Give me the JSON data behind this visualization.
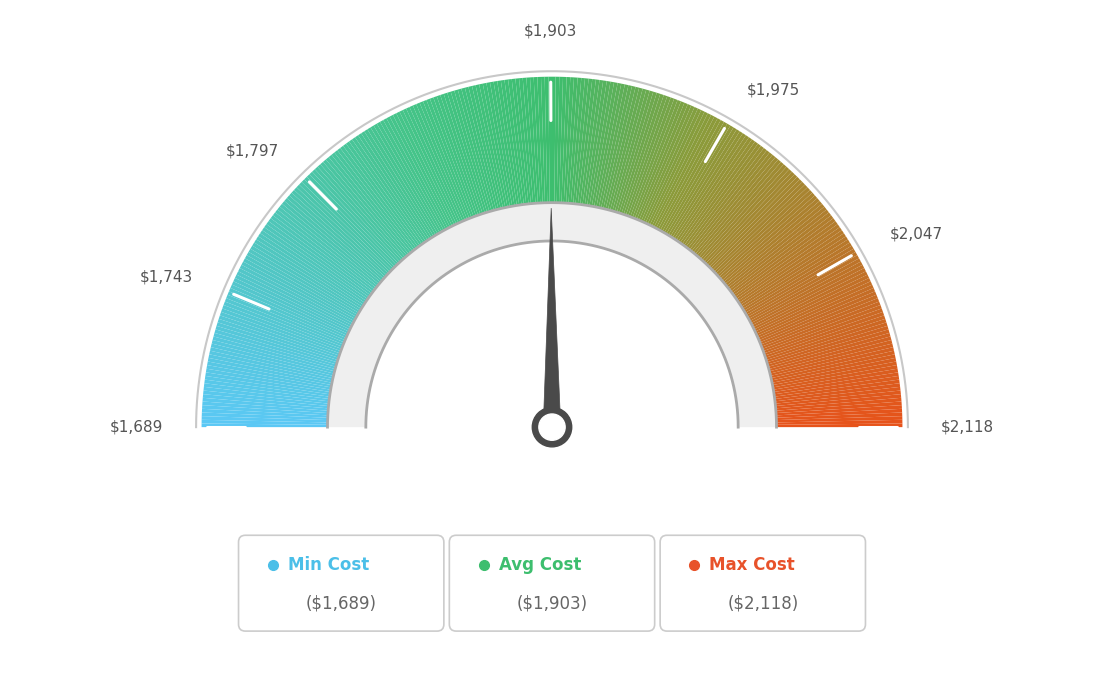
{
  "min_val": 1689,
  "max_val": 2118,
  "avg_val": 1903,
  "tick_labels": [
    "$1,689",
    "$1,743",
    "$1,797",
    "$1,903",
    "$1,975",
    "$2,047",
    "$2,118"
  ],
  "tick_values": [
    1689,
    1743,
    1797,
    1903,
    1975,
    2047,
    2118
  ],
  "legend_labels": [
    "Min Cost",
    "Avg Cost",
    "Max Cost"
  ],
  "legend_values": [
    "($1,689)",
    "($1,903)",
    "($2,118)"
  ],
  "legend_colors": [
    "#4BBFE8",
    "#3DBE6E",
    "#E8522A"
  ],
  "color_stops": [
    [
      0.0,
      "#5BC8F5"
    ],
    [
      0.35,
      "#45C48A"
    ],
    [
      0.5,
      "#3DBE6E"
    ],
    [
      0.65,
      "#8B9B3A"
    ],
    [
      1.0,
      "#E8521A"
    ]
  ],
  "needle_color": "#4A4A4A",
  "background_color": "#FFFFFF"
}
